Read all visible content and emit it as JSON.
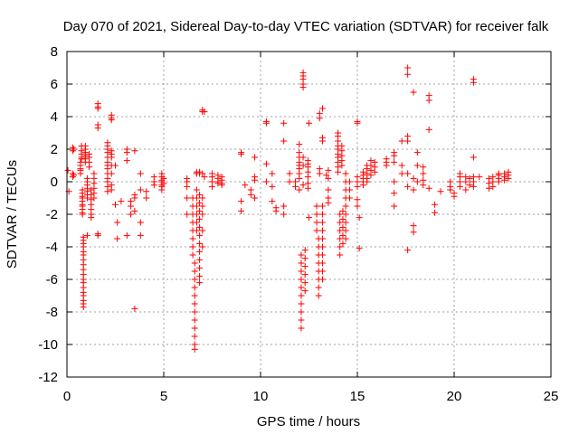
{
  "chart_data": {
    "type": "scatter",
    "title": "Day 070 of 2021, Sidereal Day-to-day VTEC variation (SDTVAR) for receiver falk",
    "xlabel": "GPS time / hours",
    "ylabel": "SDTVAR / TECUs",
    "xlim": [
      0,
      25
    ],
    "ylim": [
      -12,
      8
    ],
    "xticks": [
      0,
      5,
      10,
      15,
      20,
      25
    ],
    "yticks": [
      -12,
      -10,
      -8,
      -6,
      -4,
      -2,
      0,
      2,
      4,
      6,
      8
    ],
    "grid": true,
    "marker": "+",
    "color": "#ff0000",
    "clusters": [
      {
        "x": 0.05,
        "y": [
          0.7
        ]
      },
      {
        "x": 0.1,
        "y": [
          -0.6
        ]
      },
      {
        "x": 0.3,
        "y": [
          2.1,
          1.9,
          0.5,
          0.3
        ]
      },
      {
        "x": 0.35,
        "y": [
          2.0,
          0.4
        ]
      },
      {
        "x": 0.7,
        "y": [
          1.2,
          1.0,
          0.8,
          0.7,
          0.5
        ]
      },
      {
        "x": 0.75,
        "y": [
          2.2,
          1.9,
          1.7,
          1.5,
          1.4
        ]
      },
      {
        "x": 0.8,
        "y": [
          -0.5,
          -0.7,
          -0.9,
          -1.0,
          -1.2,
          -1.4,
          -1.5,
          -1.7,
          -1.9,
          -2.0
        ]
      },
      {
        "x": 0.85,
        "y": [
          -7.7,
          -7.5,
          -7.3,
          -7.0,
          -6.8,
          -6.5,
          -6.2,
          -6.0,
          -5.7,
          -5.4,
          -5.1,
          -4.8,
          -4.5,
          -4.3,
          -4.0,
          -3.8,
          -3.6,
          -3.4
        ]
      },
      {
        "x": 0.95,
        "y": [
          2.2,
          2.0,
          1.8,
          1.6,
          1.4,
          1.2
        ]
      },
      {
        "x": 1.05,
        "y": [
          0.2,
          0.0,
          -0.2,
          -0.4,
          -0.6,
          -0.8,
          -1.0,
          -3.3
        ]
      },
      {
        "x": 1.15,
        "y": [
          1.7,
          1.5,
          1.2,
          0.9
        ]
      },
      {
        "x": 1.25,
        "y": [
          -0.5,
          -0.8,
          -1.1,
          -1.4,
          -1.7,
          -2.0,
          -2.2
        ]
      },
      {
        "x": 1.4,
        "y": [
          0.5,
          0.2,
          -0.1,
          -0.4,
          -0.7,
          -1.0
        ]
      },
      {
        "x": 1.6,
        "y": [
          4.8,
          4.6,
          4.5,
          3.5,
          3.3,
          -3.2,
          -3.3
        ]
      },
      {
        "x": 2.1,
        "y": [
          2.4,
          2.2,
          2.0,
          1.8,
          1.5,
          1.2,
          1.0,
          0.8,
          0.5,
          0.2,
          0.0,
          -0.3,
          -0.6
        ]
      },
      {
        "x": 2.3,
        "y": [
          4.1,
          3.9,
          3.8,
          1.9,
          1.7,
          1.5,
          1.0,
          0.5,
          -0.2,
          -0.5
        ]
      },
      {
        "x": 2.5,
        "y": [
          1.0,
          -1.4
        ]
      },
      {
        "x": 2.6,
        "y": [
          -2.5,
          -3.5
        ]
      },
      {
        "x": 2.8,
        "y": [
          -1.2
        ]
      },
      {
        "x": 3.1,
        "y": [
          2.0,
          1.8,
          1.3,
          -3.3
        ]
      },
      {
        "x": 3.3,
        "y": [
          -1.2,
          -1.5,
          -2.0
        ]
      },
      {
        "x": 3.5,
        "y": [
          1.9,
          -0.8,
          -1.0,
          -1.8,
          -7.8
        ]
      },
      {
        "x": 3.8,
        "y": [
          0.5,
          -0.5,
          -2.5,
          -3.3
        ]
      },
      {
        "x": 4.1,
        "y": [
          -0.6,
          -1.0
        ]
      },
      {
        "x": 4.5,
        "y": [
          0.0,
          0.3,
          -0.2
        ]
      },
      {
        "x": 4.9,
        "y": [
          0.5,
          0.3,
          0.1,
          0.0,
          -0.2,
          -0.3,
          -0.5
        ]
      },
      {
        "x": 5.0,
        "y": [
          0.2,
          -0.1
        ]
      },
      {
        "x": 6.2,
        "y": [
          0.2,
          0.0,
          -0.3,
          -1.0,
          -2.0
        ]
      },
      {
        "x": 6.5,
        "y": [
          -1.0,
          -1.5,
          -2.0,
          -2.5,
          -3.0,
          -3.5,
          -4.0,
          -4.5
        ]
      },
      {
        "x": 6.6,
        "y": [
          -5.0,
          -5.5,
          -6.0,
          -6.5,
          -7.0,
          -7.5,
          -8.0,
          -8.5,
          -9.0,
          -9.5,
          -10.0,
          -10.3
        ]
      },
      {
        "x": 6.7,
        "y": [
          0.6,
          0.5,
          -0.5,
          -1.0,
          -1.5,
          -2.0,
          -2.5,
          -3.0
        ]
      },
      {
        "x": 6.85,
        "y": [
          0.6,
          0.5,
          -0.8,
          -1.3,
          -1.8,
          -2.3,
          -2.8,
          -3.3,
          -3.8,
          -4.3,
          -4.8,
          -5.3,
          -5.8,
          -6.2
        ]
      },
      {
        "x": 7.0,
        "y": [
          4.4,
          4.3,
          0.5,
          -1.0,
          -1.5,
          -2.0,
          -3.0,
          -4.0
        ]
      },
      {
        "x": 7.1,
        "y": [
          4.3,
          0.3
        ]
      },
      {
        "x": 7.5,
        "y": [
          0.5,
          0.3,
          0.0,
          -0.3
        ]
      },
      {
        "x": 7.8,
        "y": [
          0.4,
          0.2,
          0.0,
          -0.1
        ]
      },
      {
        "x": 8.0,
        "y": [
          0.3,
          0.1,
          -0.1,
          -0.2
        ]
      },
      {
        "x": 9.0,
        "y": [
          1.8,
          1.7,
          -1.2,
          -1.8
        ]
      },
      {
        "x": 9.2,
        "y": [
          -0.2
        ]
      },
      {
        "x": 9.5,
        "y": [
          -0.5,
          -0.8
        ]
      },
      {
        "x": 9.7,
        "y": [
          1.5,
          0.3,
          0.1,
          -1.0
        ]
      },
      {
        "x": 10.3,
        "y": [
          3.7,
          3.6,
          1.1,
          0.0
        ]
      },
      {
        "x": 10.6,
        "y": [
          0.5,
          -0.3,
          -1.2
        ]
      },
      {
        "x": 10.8,
        "y": [
          -1.8,
          -1.6
        ]
      },
      {
        "x": 11.2,
        "y": [
          3.6,
          2.5,
          -1.5,
          -2.0
        ]
      },
      {
        "x": 11.5,
        "y": [
          0.5,
          0.0
        ]
      },
      {
        "x": 11.8,
        "y": [
          0.0,
          -0.3
        ]
      },
      {
        "x": 12.0,
        "y": [
          2.3,
          1.8,
          1.5,
          1.2,
          1.0,
          0.8,
          0.5,
          0.2,
          -0.5
        ]
      },
      {
        "x": 12.1,
        "y": [
          -4.5,
          -5.0,
          -5.5,
          -6.0,
          -6.5,
          -7.0,
          -7.5,
          -8.0,
          -8.5,
          -9.0
        ]
      },
      {
        "x": 12.2,
        "y": [
          6.7,
          6.5,
          6.3,
          6.0,
          5.8,
          1.5,
          1.0,
          -0.2
        ]
      },
      {
        "x": 12.3,
        "y": [
          -4.2,
          -4.7,
          -5.2,
          -5.7,
          -6.2,
          -6.7
        ]
      },
      {
        "x": 12.45,
        "y": [
          1.3,
          1.1,
          0.9,
          0.6,
          0.3,
          -0.1,
          -0.4
        ]
      },
      {
        "x": 12.5,
        "y": [
          3.6,
          -2.2
        ]
      },
      {
        "x": 12.9,
        "y": [
          -1.5,
          -2.0,
          -2.5,
          -3.0
        ]
      },
      {
        "x": 13.0,
        "y": [
          -3.5,
          -4.0,
          -4.5,
          -5.0,
          -5.5,
          -6.0,
          -6.5,
          -7.0
        ]
      },
      {
        "x": 13.05,
        "y": [
          4.2,
          3.9,
          0.8,
          0.5
        ]
      },
      {
        "x": 13.2,
        "y": [
          4.5,
          2.7,
          2.5,
          -1.5,
          -2.0,
          -2.5,
          -3.0,
          -3.5,
          -4.0,
          -4.5,
          -5.0,
          -5.5,
          -6.0
        ]
      },
      {
        "x": 13.4,
        "y": [
          0.4
        ]
      },
      {
        "x": 13.5,
        "y": [
          0.7,
          0.2,
          -0.5,
          -1.0,
          -1.3
        ]
      },
      {
        "x": 14.0,
        "y": [
          3.0,
          2.8,
          2.5,
          2.2,
          2.0,
          1.7,
          1.5,
          1.2,
          0.9,
          0.6
        ]
      },
      {
        "x": 14.1,
        "y": [
          -2.0,
          -2.5,
          -3.0,
          -3.5,
          -4.0,
          -4.5
        ]
      },
      {
        "x": 14.2,
        "y": [
          2.2,
          1.9,
          1.6,
          1.3,
          1.0
        ]
      },
      {
        "x": 14.25,
        "y": [
          -1.8,
          -2.3,
          -2.8,
          -3.3,
          -3.8
        ]
      },
      {
        "x": 14.4,
        "y": [
          0.5,
          0.0,
          -0.5,
          -1.0,
          -1.5,
          -2.0,
          -2.5,
          -3.0,
          -3.5
        ]
      },
      {
        "x": 14.6,
        "y": [
          0.0,
          -0.5,
          -1.0
        ]
      },
      {
        "x": 15.0,
        "y": [
          3.7,
          3.6,
          0.3,
          0.0,
          -0.3,
          -1.1,
          -1.5
        ]
      },
      {
        "x": 15.1,
        "y": [
          -2.2,
          -4.1
        ]
      },
      {
        "x": 15.3,
        "y": [
          0.6,
          0.4,
          0.2,
          0.0,
          -0.2
        ]
      },
      {
        "x": 15.5,
        "y": [
          1.0,
          0.8,
          0.5,
          0.2,
          0.0
        ]
      },
      {
        "x": 15.7,
        "y": [
          1.3,
          1.0,
          0.7,
          0.4
        ]
      },
      {
        "x": 15.9,
        "y": [
          1.2,
          0.9,
          0.6
        ]
      },
      {
        "x": 16.5,
        "y": [
          1.4,
          1.2,
          1.0
        ]
      },
      {
        "x": 16.9,
        "y": [
          1.8,
          1.6,
          1.2,
          0.0,
          -0.7,
          -1.5
        ]
      },
      {
        "x": 17.3,
        "y": [
          2.5,
          1.0,
          0.5
        ]
      },
      {
        "x": 17.6,
        "y": [
          7.0,
          6.6,
          2.8,
          2.5,
          0.5,
          -0.3,
          -4.2
        ]
      },
      {
        "x": 17.9,
        "y": [
          5.5,
          0.2,
          -0.5,
          -2.7,
          -3.1
        ]
      },
      {
        "x": 18.1,
        "y": [
          1.8,
          1.0,
          0.0
        ]
      },
      {
        "x": 18.4,
        "y": [
          0.9,
          0.5,
          0.1,
          -0.2
        ]
      },
      {
        "x": 18.7,
        "y": [
          5.3,
          5.0,
          3.2,
          -0.4
        ]
      },
      {
        "x": 19.0,
        "y": [
          -1.4,
          -1.9
        ]
      },
      {
        "x": 19.3,
        "y": [
          -0.6
        ]
      },
      {
        "x": 19.8,
        "y": [
          0.0,
          -0.3,
          -0.5
        ]
      },
      {
        "x": 20.0,
        "y": [
          -0.7,
          -0.9
        ]
      },
      {
        "x": 20.3,
        "y": [
          0.5,
          0.3,
          0.0,
          -0.3
        ]
      },
      {
        "x": 20.6,
        "y": [
          0.3,
          0.0,
          -0.5
        ]
      },
      {
        "x": 20.8,
        "y": [
          0.2,
          -0.2
        ]
      },
      {
        "x": 21.0,
        "y": [
          6.3,
          6.1,
          1.5,
          0.3,
          0.0,
          -0.3
        ]
      },
      {
        "x": 21.3,
        "y": [
          0.3
        ]
      },
      {
        "x": 21.8,
        "y": [
          0.2,
          -0.1,
          -0.4
        ]
      },
      {
        "x": 22.0,
        "y": [
          0.3,
          0.0,
          -0.3
        ]
      },
      {
        "x": 22.3,
        "y": [
          0.5,
          0.4,
          0.2,
          0.0
        ]
      },
      {
        "x": 22.6,
        "y": [
          0.5,
          0.3,
          0.1
        ]
      },
      {
        "x": 22.8,
        "y": [
          0.6,
          0.4,
          0.2
        ]
      }
    ]
  }
}
